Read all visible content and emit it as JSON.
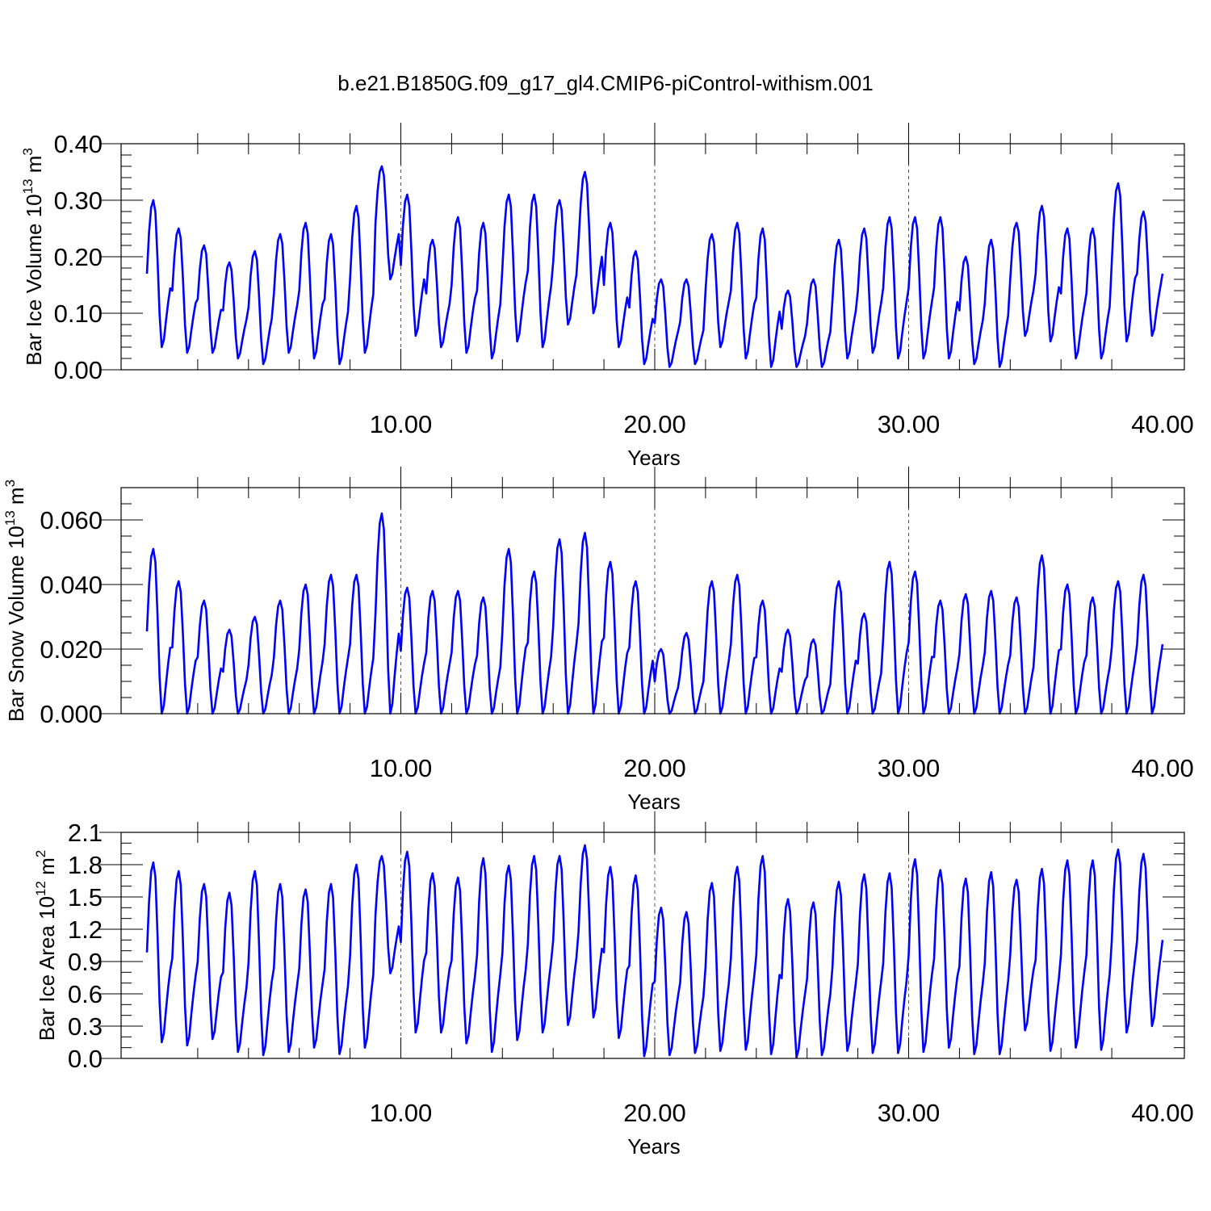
{
  "figure": {
    "title": "b.e21.B1850G.f09_g17_gl4.CMIP6-piControl-withism.001"
  },
  "chart_data": [
    {
      "type": "line",
      "xlabel": "Years",
      "ylabel": {
        "base": "Bar Ice Volume 10",
        "exp": "13",
        "unit": " m",
        "unit_exp": "3"
      },
      "xlim": [
        0,
        40
      ],
      "ylim": [
        0,
        0.4
      ],
      "xticks": [
        10,
        20,
        30,
        40
      ],
      "xtick_labels": [
        "10.00",
        "20.00",
        "30.00",
        "40.00"
      ],
      "yticks": [
        0,
        0.1,
        0.2,
        0.3,
        0.4
      ],
      "ytick_labels": [
        "0.00",
        "0.10",
        "0.20",
        "0.30",
        "0.40"
      ],
      "y_minor": [
        0.02,
        0.04,
        0.06,
        0.08,
        0.12,
        0.14,
        0.16,
        0.18,
        0.22,
        0.24,
        0.26,
        0.28,
        0.32,
        0.34,
        0.36,
        0.38
      ],
      "grid": "dashed vertical at major x ticks",
      "series": [
        {
          "color": "#0000ff",
          "peaks": [
            0.3,
            0.25,
            0.22,
            0.19,
            0.21,
            0.24,
            0.26,
            0.24,
            0.29,
            0.36,
            0.31,
            0.23,
            0.27,
            0.26,
            0.31,
            0.31,
            0.3,
            0.35,
            0.26,
            0.21,
            0.16,
            0.16,
            0.24,
            0.26,
            0.25,
            0.14,
            0.16,
            0.23,
            0.25,
            0.27,
            0.27,
            0.27,
            0.2,
            0.23,
            0.26,
            0.29,
            0.25,
            0.25,
            0.33,
            0.28
          ],
          "troughs": [
            0.04,
            0.03,
            0.03,
            0.02,
            0.01,
            0.03,
            0.02,
            0.01,
            0.03,
            0.16,
            0.06,
            0.04,
            0.03,
            0.02,
            0.05,
            0.04,
            0.08,
            0.1,
            0.04,
            0.01,
            0.005,
            0.01,
            0.04,
            0.02,
            0.005,
            0.005,
            0.005,
            0.02,
            0.03,
            0.02,
            0.02,
            0.02,
            0.01,
            0.005,
            0.06,
            0.05,
            0.02,
            0.02,
            0.05,
            0.06
          ]
        }
      ]
    },
    {
      "type": "line",
      "xlabel": "Years",
      "ylabel": {
        "base": "Bar Snow Volume 10",
        "exp": "13",
        "unit": " m",
        "unit_exp": "3"
      },
      "xlim": [
        0,
        40
      ],
      "ylim": [
        0,
        0.07
      ],
      "xticks": [
        10,
        20,
        30,
        40
      ],
      "xtick_labels": [
        "10.00",
        "20.00",
        "30.00",
        "40.00"
      ],
      "yticks": [
        0,
        0.02,
        0.04,
        0.06
      ],
      "ytick_labels": [
        "0.000",
        "0.020",
        "0.040",
        "0.060"
      ],
      "y_minor": [
        0.005,
        0.01,
        0.015,
        0.025,
        0.03,
        0.035,
        0.045,
        0.05,
        0.055,
        0.065
      ],
      "grid": "dashed vertical at major x ticks",
      "series": [
        {
          "color": "#0000ff",
          "peaks": [
            0.051,
            0.041,
            0.035,
            0.026,
            0.03,
            0.035,
            0.04,
            0.043,
            0.043,
            0.062,
            0.039,
            0.038,
            0.038,
            0.036,
            0.051,
            0.044,
            0.054,
            0.056,
            0.047,
            0.041,
            0.02,
            0.025,
            0.041,
            0.043,
            0.035,
            0.026,
            0.023,
            0.041,
            0.031,
            0.047,
            0.044,
            0.035,
            0.037,
            0.038,
            0.036,
            0.049,
            0.04,
            0.036,
            0.041,
            0.043
          ],
          "troughs": [
            0.0,
            0.0,
            0.0,
            0.0,
            0.0,
            0.0,
            0.0,
            0.0,
            0.0,
            0.0,
            0.0,
            0.0,
            0.0,
            0.0,
            0.0,
            0.0,
            0.0,
            0.0,
            0.0,
            0.0,
            0.0,
            0.0,
            0.0,
            0.0,
            0.0,
            0.0,
            0.0,
            0.0,
            0.0,
            0.0,
            0.0,
            0.0,
            0.0,
            0.0,
            0.0,
            0.0,
            0.0,
            0.0,
            0.0,
            0.0
          ]
        }
      ]
    },
    {
      "type": "line",
      "xlabel": "Years",
      "ylabel": {
        "base": "Bar Ice Area 10",
        "exp": "12",
        "unit": " m",
        "unit_exp": "2"
      },
      "xlim": [
        0,
        40
      ],
      "ylim": [
        0,
        2.1
      ],
      "xticks": [
        10,
        20,
        30,
        40
      ],
      "xtick_labels": [
        "10.00",
        "20.00",
        "30.00",
        "40.00"
      ],
      "yticks": [
        0,
        0.3,
        0.6,
        0.9,
        1.2,
        1.5,
        1.8,
        2.1
      ],
      "ytick_labels": [
        "0.0",
        "0.3",
        "0.6",
        "0.9",
        "1.2",
        "1.5",
        "1.8",
        "2.1"
      ],
      "y_minor": [
        0.1,
        0.2,
        0.4,
        0.5,
        0.7,
        0.8,
        1.0,
        1.1,
        1.3,
        1.4,
        1.6,
        1.7,
        1.9,
        2.0
      ],
      "grid": "dashed vertical at major x ticks",
      "series": [
        {
          "color": "#0000ff",
          "peaks": [
            1.82,
            1.74,
            1.62,
            1.54,
            1.74,
            1.62,
            1.57,
            1.62,
            1.8,
            1.88,
            1.92,
            1.72,
            1.68,
            1.86,
            1.79,
            1.88,
            1.88,
            1.98,
            1.78,
            1.7,
            1.4,
            1.36,
            1.63,
            1.78,
            1.88,
            1.48,
            1.45,
            1.64,
            1.71,
            1.72,
            1.85,
            1.75,
            1.67,
            1.73,
            1.66,
            1.76,
            1.84,
            1.84,
            1.94,
            1.9
          ],
          "troughs": [
            0.15,
            0.12,
            0.18,
            0.06,
            0.03,
            0.06,
            0.1,
            0.04,
            0.1,
            0.79,
            0.24,
            0.24,
            0.14,
            0.06,
            0.17,
            0.24,
            0.31,
            0.38,
            0.19,
            0.02,
            0.03,
            0.05,
            0.07,
            0.08,
            0.04,
            0.01,
            0.03,
            0.07,
            0.05,
            0.05,
            0.06,
            0.1,
            0.04,
            0.04,
            0.26,
            0.07,
            0.1,
            0.08,
            0.24,
            0.3
          ]
        }
      ]
    }
  ]
}
